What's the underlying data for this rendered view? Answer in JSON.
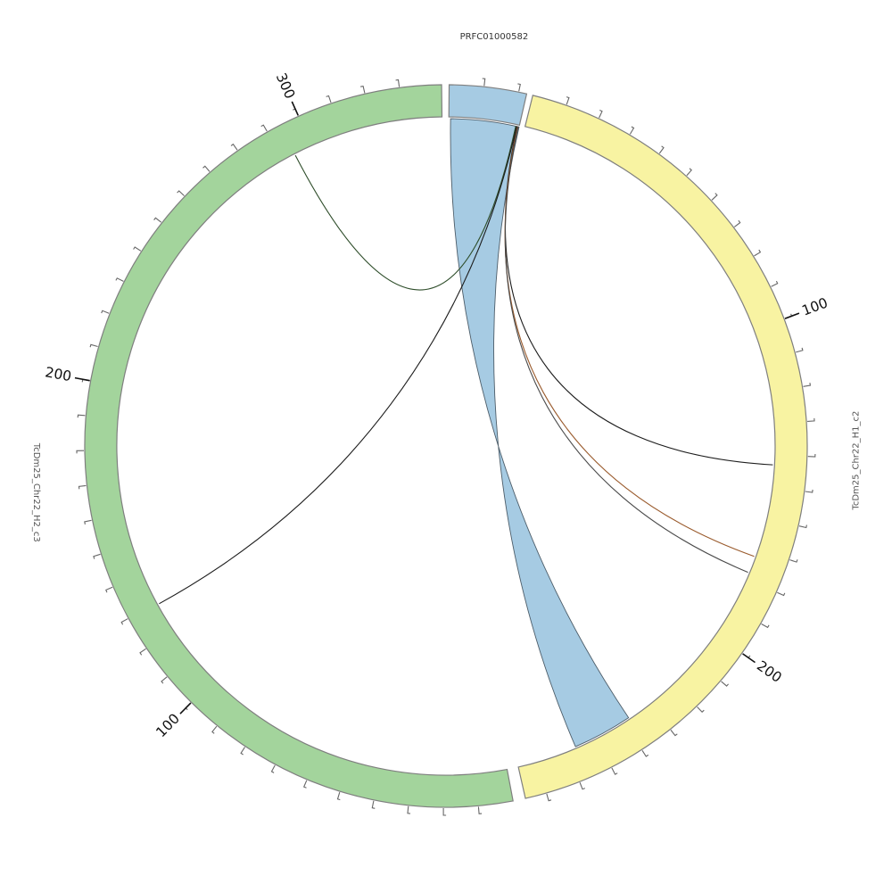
{
  "plot_title": "PRFC01000582",
  "colors": {
    "background": "#ffffff",
    "segment_border": "#7f7f7f",
    "tick": "#666666",
    "tick_label": "#111111",
    "leader_line": "#111111",
    "segment_label": "#555555",
    "ribbon_fill": "#a6cbe3",
    "ribbon_stroke": "#4d5d69"
  },
  "chart_data": {
    "type": "circos",
    "center": [
      500,
      500
    ],
    "outer_radius": 405,
    "band_width": 36,
    "link_radius": 367,
    "degrees_per_unit": 0.5554,
    "minor_tick_units": 10,
    "segments": [
      {
        "name": "PRFC01000582",
        "color": "#a6cbe3",
        "start_deg": 0.5,
        "end_deg": 12.9,
        "length_units": 22,
        "major_ticks": [],
        "label": {
          "deg": 6.7,
          "radius": 462,
          "rotate": 0,
          "align": "middle"
        }
      },
      {
        "name": "TcDm25_Chr22_H1_c2",
        "color": "#f8f3a2",
        "start_deg": 13.9,
        "end_deg": 167.3,
        "length_units": 276,
        "major_ticks": [
          {
            "value": "100",
            "deg": 69.4
          },
          {
            "value": "200",
            "deg": 125.0
          }
        ],
        "label": {
          "deg": 92.0,
          "radius": 460,
          "rotate": -90,
          "align": "middle"
        }
      },
      {
        "name": "TcDm25_Chr22_H2_c3",
        "color": "#a3d49c",
        "start_deg": 169.3,
        "end_deg": 359.3,
        "length_units": 342,
        "major_ticks": [
          {
            "value": "100",
            "deg": 224.8
          },
          {
            "value": "200",
            "deg": 280.4
          },
          {
            "value": "300",
            "deg": 335.9
          }
        ],
        "label": {
          "deg": 263.5,
          "radius": 462,
          "rotate": 90,
          "align": "middle"
        }
      }
    ],
    "ribbons": [
      {
        "name": "ribbon-PRFC01000582-to-H1",
        "fill": "#a6cbe3",
        "stroke": "#4d5d69",
        "source_start_deg": 0.8,
        "source_end_deg": 12.9,
        "target_start_deg": 146.1,
        "target_end_deg": 156.7,
        "twisted": true
      }
    ],
    "links": [
      {
        "name": "link-to-green-295",
        "from_deg": 12.3,
        "to_deg": 332.6,
        "color": "#2e4d2a"
      },
      {
        "name": "link-to-green-130",
        "from_deg": 12.45,
        "to_deg": 241.2,
        "color": "#1c1c1c"
      },
      {
        "name": "link-to-yellow-143",
        "from_deg": 12.55,
        "to_deg": 93.3,
        "color": "#1c1c1c"
      },
      {
        "name": "link-to-yellow-172",
        "from_deg": 12.65,
        "to_deg": 109.7,
        "color": "#9a5b2d"
      },
      {
        "name": "link-to-yellow-178",
        "from_deg": 12.75,
        "to_deg": 112.7,
        "color": "#4a4a4a"
      }
    ],
    "style": {
      "tick_len": 8,
      "tick_hook": 3,
      "leader_r0": 406,
      "leader_r1": 423,
      "tick_label_radius": 442,
      "tick_label_size": 15.5,
      "segment_label_size": 10,
      "bezier_pull": 0.65
    }
  }
}
